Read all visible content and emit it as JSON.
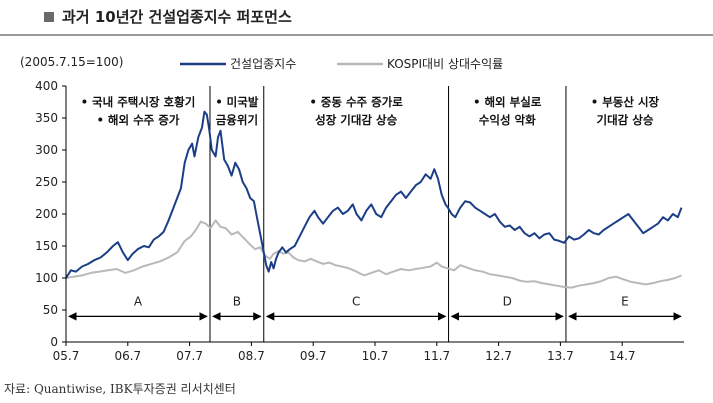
{
  "header": {
    "title": "과거 10년간 건설업종지수 퍼포먼스"
  },
  "source": "자료: Quantiwise, IBK투자증권 리서치센터",
  "colors": {
    "construction": "#1c3e87",
    "kospi_relative": "#b9b9b9",
    "axis": "#000000"
  },
  "chart_data": {
    "type": "line",
    "base_note": "(2005.7.15=100)",
    "ylim": [
      0,
      400
    ],
    "y_ticks": [
      "0",
      "50",
      "100",
      "150",
      "200",
      "250",
      "300",
      "350",
      "400"
    ],
    "x_ticks": [
      {
        "label": "05.7",
        "x": 2005.54
      },
      {
        "label": "06.7",
        "x": 2006.54
      },
      {
        "label": "07.7",
        "x": 2007.54
      },
      {
        "label": "08.7",
        "x": 2008.54
      },
      {
        "label": "09.7",
        "x": 2009.54
      },
      {
        "label": "10.7",
        "x": 2010.54
      },
      {
        "label": "11.7",
        "x": 2011.54
      },
      {
        "label": "12.7",
        "x": 2012.54
      },
      {
        "label": "13.7",
        "x": 2013.54
      },
      {
        "label": "14.7",
        "x": 2014.54
      }
    ],
    "xlim": [
      2005.54,
      2015.54
    ],
    "legend_position": "top",
    "series": [
      {
        "name": "건설업종지수",
        "points": [
          [
            2005.54,
            100
          ],
          [
            2005.62,
            112
          ],
          [
            2005.7,
            110
          ],
          [
            2005.8,
            118
          ],
          [
            2005.9,
            122
          ],
          [
            2006.0,
            128
          ],
          [
            2006.1,
            132
          ],
          [
            2006.2,
            140
          ],
          [
            2006.3,
            150
          ],
          [
            2006.38,
            156
          ],
          [
            2006.46,
            140
          ],
          [
            2006.54,
            128
          ],
          [
            2006.62,
            138
          ],
          [
            2006.7,
            145
          ],
          [
            2006.8,
            150
          ],
          [
            2006.88,
            148
          ],
          [
            2006.96,
            160
          ],
          [
            2007.04,
            165
          ],
          [
            2007.12,
            172
          ],
          [
            2007.2,
            190
          ],
          [
            2007.28,
            210
          ],
          [
            2007.34,
            225
          ],
          [
            2007.4,
            240
          ],
          [
            2007.46,
            280
          ],
          [
            2007.52,
            300
          ],
          [
            2007.58,
            310
          ],
          [
            2007.62,
            290
          ],
          [
            2007.68,
            320
          ],
          [
            2007.74,
            335
          ],
          [
            2007.78,
            360
          ],
          [
            2007.82,
            355
          ],
          [
            2007.86,
            330
          ],
          [
            2007.9,
            300
          ],
          [
            2007.96,
            290
          ],
          [
            2008.0,
            320
          ],
          [
            2008.04,
            330
          ],
          [
            2008.1,
            285
          ],
          [
            2008.16,
            275
          ],
          [
            2008.22,
            260
          ],
          [
            2008.28,
            280
          ],
          [
            2008.34,
            270
          ],
          [
            2008.4,
            250
          ],
          [
            2008.46,
            240
          ],
          [
            2008.52,
            225
          ],
          [
            2008.58,
            220
          ],
          [
            2008.62,
            200
          ],
          [
            2008.66,
            180
          ],
          [
            2008.7,
            160
          ],
          [
            2008.74,
            140
          ],
          [
            2008.78,
            120
          ],
          [
            2008.82,
            110
          ],
          [
            2008.86,
            125
          ],
          [
            2008.9,
            115
          ],
          [
            2008.94,
            130
          ],
          [
            2008.98,
            140
          ],
          [
            2009.04,
            148
          ],
          [
            2009.1,
            140
          ],
          [
            2009.16,
            145
          ],
          [
            2009.24,
            150
          ],
          [
            2009.32,
            165
          ],
          [
            2009.4,
            180
          ],
          [
            2009.48,
            195
          ],
          [
            2009.56,
            205
          ],
          [
            2009.62,
            195
          ],
          [
            2009.7,
            185
          ],
          [
            2009.78,
            195
          ],
          [
            2009.86,
            205
          ],
          [
            2009.94,
            210
          ],
          [
            2010.02,
            200
          ],
          [
            2010.1,
            205
          ],
          [
            2010.18,
            215
          ],
          [
            2010.24,
            200
          ],
          [
            2010.32,
            190
          ],
          [
            2010.4,
            205
          ],
          [
            2010.48,
            215
          ],
          [
            2010.56,
            200
          ],
          [
            2010.64,
            195
          ],
          [
            2010.72,
            210
          ],
          [
            2010.8,
            220
          ],
          [
            2010.88,
            230
          ],
          [
            2010.96,
            235
          ],
          [
            2011.04,
            225
          ],
          [
            2011.12,
            235
          ],
          [
            2011.2,
            245
          ],
          [
            2011.28,
            250
          ],
          [
            2011.36,
            262
          ],
          [
            2011.44,
            255
          ],
          [
            2011.5,
            270
          ],
          [
            2011.56,
            255
          ],
          [
            2011.62,
            230
          ],
          [
            2011.68,
            215
          ],
          [
            2011.72,
            210
          ],
          [
            2011.78,
            200
          ],
          [
            2011.84,
            195
          ],
          [
            2011.92,
            210
          ],
          [
            2012.0,
            220
          ],
          [
            2012.08,
            218
          ],
          [
            2012.16,
            210
          ],
          [
            2012.24,
            205
          ],
          [
            2012.32,
            200
          ],
          [
            2012.4,
            195
          ],
          [
            2012.48,
            200
          ],
          [
            2012.56,
            188
          ],
          [
            2012.64,
            180
          ],
          [
            2012.72,
            182
          ],
          [
            2012.8,
            175
          ],
          [
            2012.88,
            180
          ],
          [
            2012.96,
            170
          ],
          [
            2013.04,
            165
          ],
          [
            2013.12,
            170
          ],
          [
            2013.2,
            162
          ],
          [
            2013.28,
            168
          ],
          [
            2013.36,
            170
          ],
          [
            2013.44,
            160
          ],
          [
            2013.52,
            158
          ],
          [
            2013.6,
            155
          ],
          [
            2013.68,
            165
          ],
          [
            2013.76,
            160
          ],
          [
            2013.84,
            162
          ],
          [
            2013.92,
            168
          ],
          [
            2014.0,
            175
          ],
          [
            2014.08,
            170
          ],
          [
            2014.16,
            168
          ],
          [
            2014.24,
            175
          ],
          [
            2014.32,
            180
          ],
          [
            2014.4,
            185
          ],
          [
            2014.48,
            190
          ],
          [
            2014.56,
            195
          ],
          [
            2014.64,
            200
          ],
          [
            2014.72,
            190
          ],
          [
            2014.8,
            180
          ],
          [
            2014.88,
            170
          ],
          [
            2014.96,
            175
          ],
          [
            2015.04,
            180
          ],
          [
            2015.12,
            185
          ],
          [
            2015.2,
            195
          ],
          [
            2015.28,
            190
          ],
          [
            2015.36,
            200
          ],
          [
            2015.44,
            195
          ],
          [
            2015.5,
            210
          ]
        ]
      },
      {
        "name": "KOSPI대비 상대수익률",
        "points": [
          [
            2005.54,
            100
          ],
          [
            2005.66,
            102
          ],
          [
            2005.8,
            104
          ],
          [
            2005.94,
            108
          ],
          [
            2006.08,
            110
          ],
          [
            2006.22,
            112
          ],
          [
            2006.36,
            114
          ],
          [
            2006.5,
            108
          ],
          [
            2006.64,
            112
          ],
          [
            2006.78,
            118
          ],
          [
            2006.92,
            122
          ],
          [
            2007.06,
            126
          ],
          [
            2007.2,
            132
          ],
          [
            2007.34,
            140
          ],
          [
            2007.46,
            158
          ],
          [
            2007.56,
            165
          ],
          [
            2007.64,
            175
          ],
          [
            2007.72,
            188
          ],
          [
            2007.8,
            185
          ],
          [
            2007.88,
            178
          ],
          [
            2007.96,
            190
          ],
          [
            2008.04,
            180
          ],
          [
            2008.12,
            178
          ],
          [
            2008.22,
            168
          ],
          [
            2008.32,
            172
          ],
          [
            2008.42,
            162
          ],
          [
            2008.52,
            152
          ],
          [
            2008.6,
            145
          ],
          [
            2008.68,
            148
          ],
          [
            2008.76,
            135
          ],
          [
            2008.84,
            130
          ],
          [
            2008.9,
            138
          ],
          [
            2008.98,
            142
          ],
          [
            2009.06,
            138
          ],
          [
            2009.14,
            140
          ],
          [
            2009.22,
            132
          ],
          [
            2009.3,
            128
          ],
          [
            2009.4,
            126
          ],
          [
            2009.5,
            130
          ],
          [
            2009.6,
            126
          ],
          [
            2009.7,
            122
          ],
          [
            2009.8,
            124
          ],
          [
            2009.9,
            120
          ],
          [
            2010.0,
            118
          ],
          [
            2010.12,
            115
          ],
          [
            2010.24,
            110
          ],
          [
            2010.36,
            104
          ],
          [
            2010.48,
            108
          ],
          [
            2010.6,
            112
          ],
          [
            2010.72,
            106
          ],
          [
            2010.84,
            110
          ],
          [
            2010.96,
            114
          ],
          [
            2011.08,
            112
          ],
          [
            2011.2,
            114
          ],
          [
            2011.32,
            116
          ],
          [
            2011.44,
            118
          ],
          [
            2011.54,
            124
          ],
          [
            2011.62,
            118
          ],
          [
            2011.72,
            115
          ],
          [
            2011.82,
            112
          ],
          [
            2011.92,
            120
          ],
          [
            2012.04,
            116
          ],
          [
            2012.16,
            112
          ],
          [
            2012.28,
            110
          ],
          [
            2012.4,
            106
          ],
          [
            2012.52,
            104
          ],
          [
            2012.64,
            102
          ],
          [
            2012.76,
            100
          ],
          [
            2012.88,
            96
          ],
          [
            2013.0,
            94
          ],
          [
            2013.12,
            95
          ],
          [
            2013.24,
            92
          ],
          [
            2013.36,
            90
          ],
          [
            2013.48,
            88
          ],
          [
            2013.6,
            86
          ],
          [
            2013.72,
            85
          ],
          [
            2013.84,
            88
          ],
          [
            2013.96,
            90
          ],
          [
            2014.08,
            92
          ],
          [
            2014.2,
            95
          ],
          [
            2014.32,
            100
          ],
          [
            2014.44,
            102
          ],
          [
            2014.56,
            98
          ],
          [
            2014.68,
            94
          ],
          [
            2014.8,
            92
          ],
          [
            2014.92,
            90
          ],
          [
            2015.04,
            92
          ],
          [
            2015.16,
            95
          ],
          [
            2015.28,
            97
          ],
          [
            2015.4,
            100
          ],
          [
            2015.5,
            104
          ]
        ]
      }
    ],
    "dividers": [
      2007.87,
      2008.74,
      2011.73,
      2013.63
    ],
    "periods": [
      {
        "label": "A",
        "from": 2005.54,
        "to": 2007.87,
        "notes": [
          "• 국내 주택시장 호황기",
          "• 해외 수주 증가"
        ]
      },
      {
        "label": "B",
        "from": 2007.87,
        "to": 2008.74,
        "notes": [
          "• 미국발",
          "금융위기"
        ]
      },
      {
        "label": "C",
        "from": 2008.74,
        "to": 2011.73,
        "notes": [
          "• 중동 수주 증가로",
          "성장 기대감 상승"
        ]
      },
      {
        "label": "D",
        "from": 2011.73,
        "to": 2013.63,
        "notes": [
          "• 해외 부실로",
          "수익성 악화"
        ]
      },
      {
        "label": "E",
        "from": 2013.63,
        "to": 2015.54,
        "notes": [
          "• 부동산 시장",
          "기대감 상승"
        ]
      }
    ],
    "period_arrow_y": 40,
    "period_label_y": 57
  }
}
